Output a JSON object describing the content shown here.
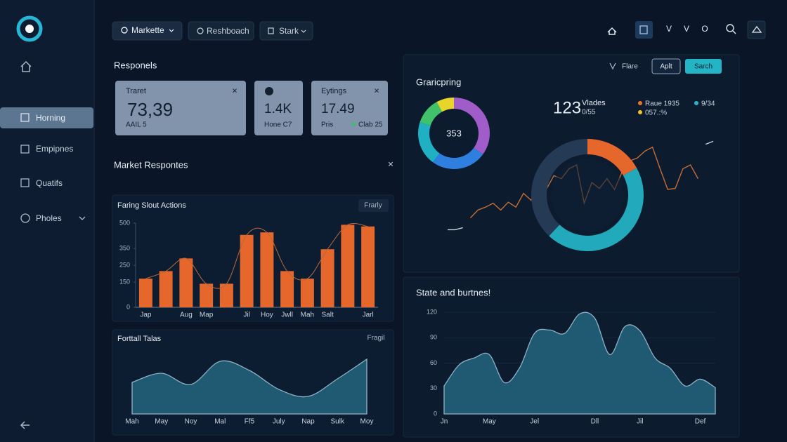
{
  "sidebar": {
    "items": [
      "Horning",
      "Empipnes",
      "Quatifs",
      "Pholes"
    ]
  },
  "nav": {
    "tabs": [
      "Markette",
      "Reshboach",
      "Stark"
    ],
    "icons": [
      "V",
      "V",
      "O"
    ]
  },
  "responses": {
    "title": "Responels",
    "cards": [
      {
        "label": "Traret",
        "value": "73,39",
        "note": "AAIL 5"
      },
      {
        "value": "1.4K",
        "note": "Hone C7"
      },
      {
        "label": "Eytings",
        "value": "17.49",
        "note": "Pris",
        "tag": "Clab 25"
      }
    ]
  },
  "market": {
    "title": "Market Respontes"
  },
  "bar_chart": {
    "type": "bar",
    "title": "Faring Slout Actions",
    "button": "Frarly",
    "categories": [
      "Jap",
      null,
      "Aug",
      "Map",
      null,
      "Jil",
      "Hoy",
      "Jwll",
      "Mah",
      "Salt",
      null,
      "Jarl"
    ],
    "values": [
      170,
      215,
      290,
      140,
      140,
      430,
      445,
      215,
      170,
      345,
      490,
      480
    ],
    "color": "#e5672c",
    "ylim": [
      0,
      500
    ],
    "yticks": [
      0,
      150,
      250,
      350,
      500
    ]
  },
  "area_chart": {
    "type": "area",
    "title": "Forttall Talas",
    "button": "Fragil",
    "categories": [
      "Mah",
      "May",
      "Noy",
      "Mal",
      "Ff5",
      "July",
      "Nap",
      "Sulk",
      "Moy"
    ],
    "values": [
      45,
      58,
      42,
      75,
      62,
      35,
      25,
      50,
      78
    ],
    "color": "#1f5a72",
    "ylim": [
      0,
      100
    ]
  },
  "graphic": {
    "title": "Graricpring",
    "filters": [
      "Flare",
      "Aplt",
      "Sarch"
    ],
    "small_donut": {
      "type": "pie",
      "center_label": "353",
      "values": [
        35,
        25,
        20,
        12,
        8
      ],
      "colors": [
        "#a05cc8",
        "#2f7fe0",
        "#1fb0c4",
        "#3fc26a",
        "#e8d52a"
      ]
    },
    "stat": {
      "value": "123",
      "label": "Vlades",
      "sub": "0/55"
    },
    "legend": [
      {
        "label": "Raue 1935",
        "color": "#e5772c"
      },
      {
        "label": "9/34",
        "color": "#2bb5c8"
      },
      {
        "label": "057.:%",
        "color": "#f1c22a"
      }
    ],
    "big_donut": {
      "type": "pie",
      "values": [
        17,
        45,
        38
      ],
      "colors": [
        "#e5672c",
        "#22a9bb",
        "#243a55"
      ]
    },
    "line": {
      "type": "line",
      "ylim": [
        0,
        100
      ],
      "series": [
        {
          "color": "#c9d4df",
          "values": [
            9,
            9,
            11,
            null,
            null,
            null,
            null,
            null,
            null,
            null,
            null,
            null,
            null,
            null,
            null,
            null,
            null,
            null,
            null,
            null,
            null,
            null,
            null,
            null,
            null,
            null,
            null,
            null,
            null,
            null,
            null,
            null,
            null,
            null,
            96,
            99
          ]
        },
        {
          "color": "#c46e35",
          "values": [
            null,
            null,
            null,
            21,
            29,
            32,
            36,
            29,
            37,
            32,
            46,
            39,
            57,
            50,
            64,
            61,
            71,
            75,
            36,
            57,
            51,
            61,
            50,
            68,
            79,
            82,
            89,
            93,
            71,
            50,
            51,
            71,
            75,
            61,
            null,
            null
          ]
        }
      ]
    }
  },
  "state_chart": {
    "type": "area",
    "title": "State and burtnes!",
    "categories": [
      "Jn",
      null,
      null,
      "May",
      null,
      null,
      "Jel",
      null,
      null,
      null,
      "Dll",
      null,
      null,
      "Jil",
      null,
      null,
      null,
      "Def",
      null
    ],
    "values": [
      33,
      58,
      66,
      70,
      37,
      54,
      95,
      99,
      95,
      118,
      113,
      70,
      103,
      98,
      66,
      54,
      33,
      41,
      31
    ],
    "color": "#1f5a72",
    "ylim": [
      0,
      120
    ],
    "yticks": [
      0,
      30,
      60,
      90,
      120
    ]
  }
}
